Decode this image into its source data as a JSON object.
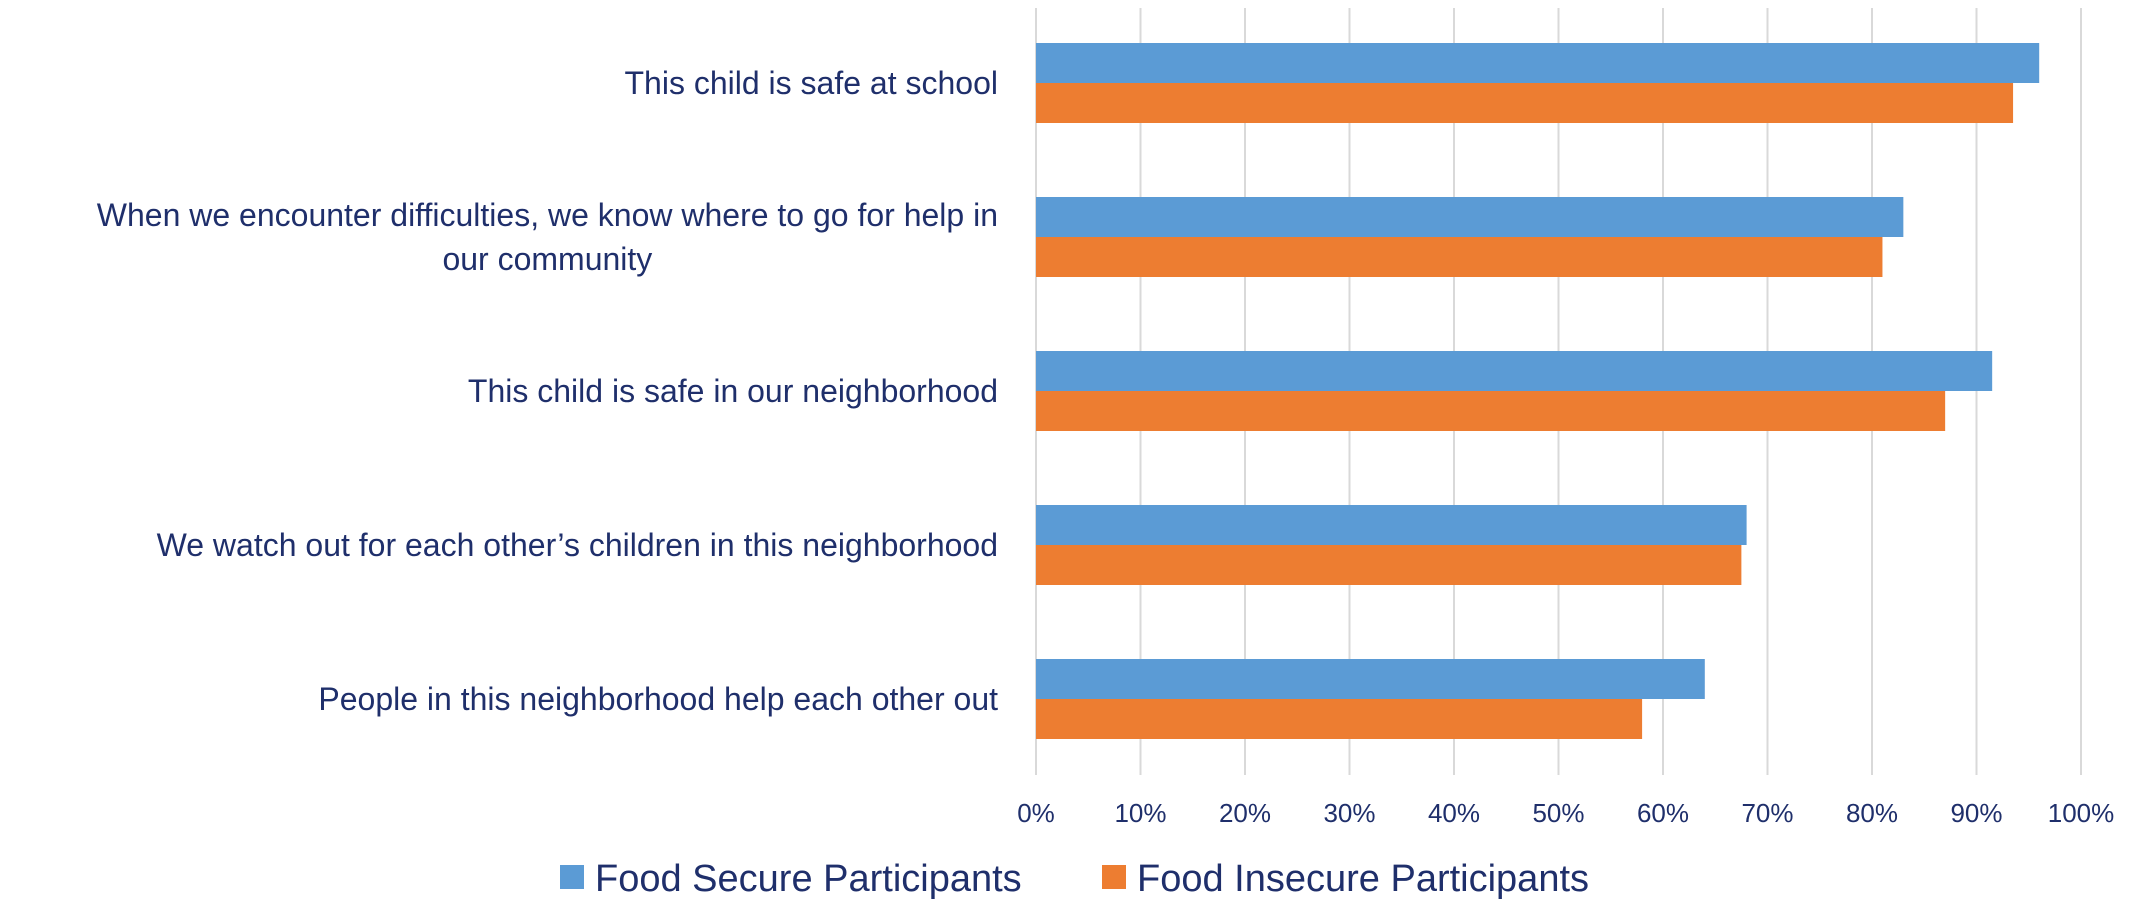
{
  "chart_data": {
    "type": "bar",
    "orientation": "horizontal",
    "categories": [
      "This child is safe at school",
      "When we encounter difficulties, we know where to go for help in our community",
      "This child is safe in our neighborhood",
      "We watch out for each other’s children in this neighborhood",
      "People in this neighborhood help each other out"
    ],
    "category_lines": [
      [
        "This child is safe at school"
      ],
      [
        "When we encounter difficulties, we know where to go for help in",
        "our community"
      ],
      [
        "This child is safe in our neighborhood"
      ],
      [
        "We watch out for each other’s children in this neighborhood"
      ],
      [
        "People in this neighborhood help each other out"
      ]
    ],
    "series": [
      {
        "name": "Food Secure Participants",
        "color": "#5b9bd5",
        "values": [
          96,
          83,
          91.5,
          68,
          64
        ]
      },
      {
        "name": "Food Insecure Participants",
        "color": "#ed7d31",
        "values": [
          93.5,
          81,
          87,
          67.5,
          58
        ]
      }
    ],
    "xlim": [
      0,
      100
    ],
    "xticks": [
      0,
      10,
      20,
      30,
      40,
      50,
      60,
      70,
      80,
      90,
      100
    ],
    "xtick_labels": [
      "0%",
      "10%",
      "20%",
      "30%",
      "40%",
      "50%",
      "60%",
      "70%",
      "80%",
      "90%",
      "100%"
    ],
    "grid": true,
    "legend_position": "bottom",
    "title": "",
    "xlabel": "",
    "ylabel": ""
  }
}
